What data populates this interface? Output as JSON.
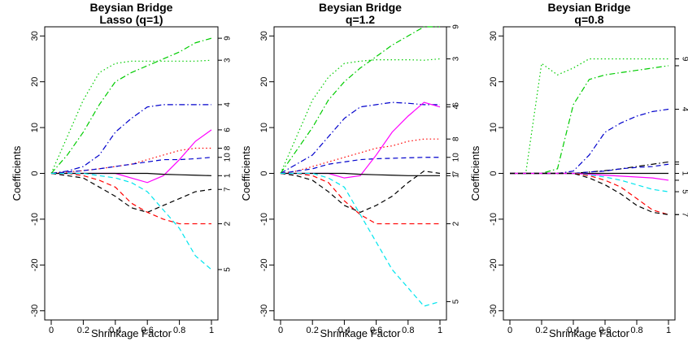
{
  "colors": {
    "black": "#000000",
    "red": "#ff0000",
    "green": "#00cc00",
    "blue": "#0000cc",
    "cyan": "#00e5ee",
    "magenta": "#ff00ff"
  },
  "chart_data": [
    {
      "type": "line",
      "title": "Beysian Bridge\nLasso (q=1)",
      "xlabel": "Shrinkage Factor",
      "ylabel": "Coefficients",
      "xlim": [
        0,
        1
      ],
      "ylim": [
        -32,
        32
      ],
      "xticks": [
        "0",
        "0.2",
        "0.4",
        "0.6",
        "0.8",
        "1"
      ],
      "yticks": [
        "-30",
        "-20",
        "-10",
        "0",
        "10",
        "20",
        "30"
      ],
      "grid": false,
      "x": [
        0,
        0.1,
        0.2,
        0.3,
        0.4,
        0.5,
        0.6,
        0.7,
        0.8,
        0.9,
        1.0
      ],
      "series": [
        {
          "label": "9",
          "color": "#00cc00",
          "dash": "dashdot",
          "values": [
            0,
            4,
            9,
            15,
            20,
            22,
            23.5,
            25,
            26.5,
            28.5,
            29.5
          ]
        },
        {
          "label": "3",
          "color": "#00cc00",
          "dash": "dotted",
          "values": [
            0,
            8,
            16,
            22,
            24,
            24.5,
            24.5,
            24.5,
            24.5,
            24.5,
            24.7
          ]
        },
        {
          "label": "4",
          "color": "#0000cc",
          "dash": "dashdot",
          "values": [
            0,
            0.5,
            1.5,
            4,
            9,
            12,
            14.5,
            15,
            15,
            15,
            15
          ]
        },
        {
          "label": "6",
          "color": "#ff00ff",
          "dash": "solid",
          "values": [
            0,
            0,
            0,
            0,
            0,
            -1,
            -2,
            -0.5,
            3,
            7,
            9.5
          ]
        },
        {
          "label": "8",
          "color": "#ff0000",
          "dash": "dotted",
          "values": [
            0,
            0.3,
            0.6,
            1,
            1.5,
            2,
            3,
            4,
            5,
            5.5,
            5.5
          ]
        },
        {
          "label": "10",
          "color": "#0000cc",
          "dash": "dashed",
          "values": [
            0,
            0.3,
            0.6,
            1,
            1.5,
            2,
            2.5,
            3,
            3,
            3.2,
            3.5
          ]
        },
        {
          "label": "1",
          "color": "#000000",
          "dash": "solid",
          "values": [
            0,
            0,
            0,
            0,
            0,
            0,
            0,
            -0.2,
            -0.3,
            -0.4,
            -0.5
          ]
        },
        {
          "label": "7",
          "color": "#000000",
          "dash": "dashed",
          "values": [
            0,
            -0.5,
            -1,
            -3,
            -5,
            -7.5,
            -8.5,
            -7,
            -5.5,
            -4,
            -3.5
          ]
        },
        {
          "label": "2",
          "color": "#ff0000",
          "dash": "dashed",
          "values": [
            0,
            0,
            -0.5,
            -1.5,
            -3,
            -6.5,
            -8.5,
            -10,
            -11,
            -11,
            -11
          ]
        },
        {
          "label": "5",
          "color": "#00e5ee",
          "dash": "dashed",
          "values": [
            0,
            0,
            0,
            -0.5,
            -1,
            -2,
            -4,
            -8,
            -12,
            -18,
            -21
          ]
        }
      ]
    },
    {
      "type": "line",
      "title": "Beysian Bridge\nq=1.2",
      "xlabel": "Shrinkage Factor",
      "ylabel": "Coefficients",
      "xlim": [
        0,
        1
      ],
      "ylim": [
        -32,
        32
      ],
      "xticks": [
        "0",
        "0.2",
        "0.4",
        "0.6",
        "0.8",
        "1"
      ],
      "yticks": [
        "-30",
        "-20",
        "-10",
        "0",
        "10",
        "20",
        "30"
      ],
      "grid": false,
      "x": [
        0,
        0.1,
        0.2,
        0.3,
        0.4,
        0.5,
        0.6,
        0.7,
        0.8,
        0.9,
        1.0
      ],
      "series": [
        {
          "label": "9",
          "color": "#00cc00",
          "dash": "dashdot",
          "values": [
            0,
            5,
            10,
            16,
            20,
            23,
            25.5,
            28,
            30,
            32,
            32
          ]
        },
        {
          "label": "3",
          "color": "#00cc00",
          "dash": "dotted",
          "values": [
            0,
            8,
            16,
            21,
            24,
            24.5,
            24.8,
            24.8,
            24.8,
            24.7,
            25
          ]
        },
        {
          "label": "6",
          "color": "#0000cc",
          "dash": "dashdot",
          "values": [
            0,
            2,
            4,
            8,
            12,
            14.5,
            15,
            15.5,
            15.3,
            15,
            15
          ]
        },
        {
          "label": "8",
          "color": "#ff0000",
          "dash": "dotted",
          "values": [
            0,
            0.5,
            1.5,
            2.5,
            3.5,
            4.5,
            5.5,
            6,
            7,
            7.5,
            7.5
          ]
        },
        {
          "label": "10",
          "color": "#0000cc",
          "dash": "dashed",
          "values": [
            0,
            0.5,
            1,
            2,
            2.5,
            3,
            3.2,
            3.3,
            3.4,
            3.5,
            3.5
          ]
        },
        {
          "label": "4",
          "color": "#ff00ff",
          "dash": "solid",
          "values": [
            0,
            0,
            0,
            0,
            -1,
            -0.5,
            4,
            9,
            12.5,
            15.5,
            14.5
          ]
        },
        {
          "label": "1",
          "color": "#000000",
          "dash": "solid",
          "values": [
            0,
            0,
            0,
            0,
            0,
            -0.2,
            -0.3,
            -0.4,
            -0.5,
            -0.5,
            -0.5
          ]
        },
        {
          "label": "7",
          "color": "#000000",
          "dash": "dashed",
          "values": [
            0,
            -0.5,
            -1.5,
            -4,
            -7,
            -8.5,
            -7,
            -5,
            -2,
            0.5,
            0
          ]
        },
        {
          "label": "2",
          "color": "#ff0000",
          "dash": "dashed",
          "values": [
            0,
            0,
            -0.5,
            -2,
            -6,
            -9,
            -11,
            -11,
            -11,
            -11,
            -11
          ]
        },
        {
          "label": "5",
          "color": "#00e5ee",
          "dash": "dashed",
          "values": [
            0,
            0,
            0,
            -1,
            -3,
            -9,
            -15,
            -21,
            -25,
            -29,
            -28
          ]
        }
      ]
    },
    {
      "type": "line",
      "title": "Beysian Bridge\nq=0.8",
      "xlabel": "Shrinkage Factor",
      "ylabel": "Coefficients",
      "xlim": [
        0,
        1
      ],
      "ylim": [
        -32,
        32
      ],
      "xticks": [
        "0",
        "0.2",
        "0.4",
        "0.6",
        "0.8",
        "1"
      ],
      "yticks": [
        "-30",
        "-20",
        "-10",
        "0",
        "10",
        "20",
        "30"
      ],
      "grid": false,
      "right_labels_rotated": true,
      "x": [
        0,
        0.1,
        0.2,
        0.3,
        0.4,
        0.5,
        0.6,
        0.7,
        0.8,
        0.9,
        1.0
      ],
      "series": [
        {
          "label": "9",
          "color": "#00cc00",
          "dash": "dotted",
          "values": [
            0,
            0,
            24,
            21.5,
            23,
            25,
            25,
            25,
            25,
            25,
            25
          ]
        },
        {
          "label": "",
          "color": "#00cc00",
          "dash": "dashdot",
          "values": [
            0,
            0,
            0,
            1,
            15,
            20.5,
            21.5,
            22,
            22.5,
            23,
            23.5
          ]
        },
        {
          "label": "4",
          "color": "#0000cc",
          "dash": "dashdot",
          "values": [
            0,
            0,
            0,
            0,
            0.5,
            4,
            9,
            11,
            12.5,
            13.5,
            14
          ]
        },
        {
          "label": "",
          "color": "#000000",
          "dash": "dashdot",
          "values": [
            0,
            0,
            0,
            0,
            0,
            0.3,
            0.6,
            1,
            1.5,
            2,
            2.5
          ]
        },
        {
          "label": "",
          "color": "#0000cc",
          "dash": "dashed",
          "values": [
            0,
            0,
            0,
            0,
            0,
            0.3,
            0.5,
            1,
            1.3,
            1.5,
            2
          ]
        },
        {
          "label": "1",
          "color": "#000000",
          "dash": "solid",
          "values": [
            0,
            0,
            0,
            0,
            0,
            0,
            0,
            0,
            0,
            0,
            0
          ]
        },
        {
          "label": "",
          "color": "#ff00ff",
          "dash": "solid",
          "values": [
            0,
            0,
            0,
            0,
            0,
            -0.2,
            -0.4,
            -0.6,
            -0.8,
            -1,
            -1.5
          ]
        },
        {
          "label": "5",
          "color": "#00e5ee",
          "dash": "dashed",
          "values": [
            0,
            0,
            0,
            0,
            0,
            -0.3,
            -0.8,
            -1.5,
            -2.5,
            -3.5,
            -4
          ]
        },
        {
          "label": "",
          "color": "#ff0000",
          "dash": "dashed",
          "values": [
            0,
            0,
            0,
            0,
            0,
            -0.5,
            -1.5,
            -3,
            -5.5,
            -8,
            -9
          ]
        },
        {
          "label": "7",
          "color": "#000000",
          "dash": "dashed",
          "values": [
            0,
            0,
            0,
            0,
            0,
            -1,
            -2.5,
            -4.5,
            -7,
            -8.5,
            -9
          ]
        }
      ]
    }
  ]
}
